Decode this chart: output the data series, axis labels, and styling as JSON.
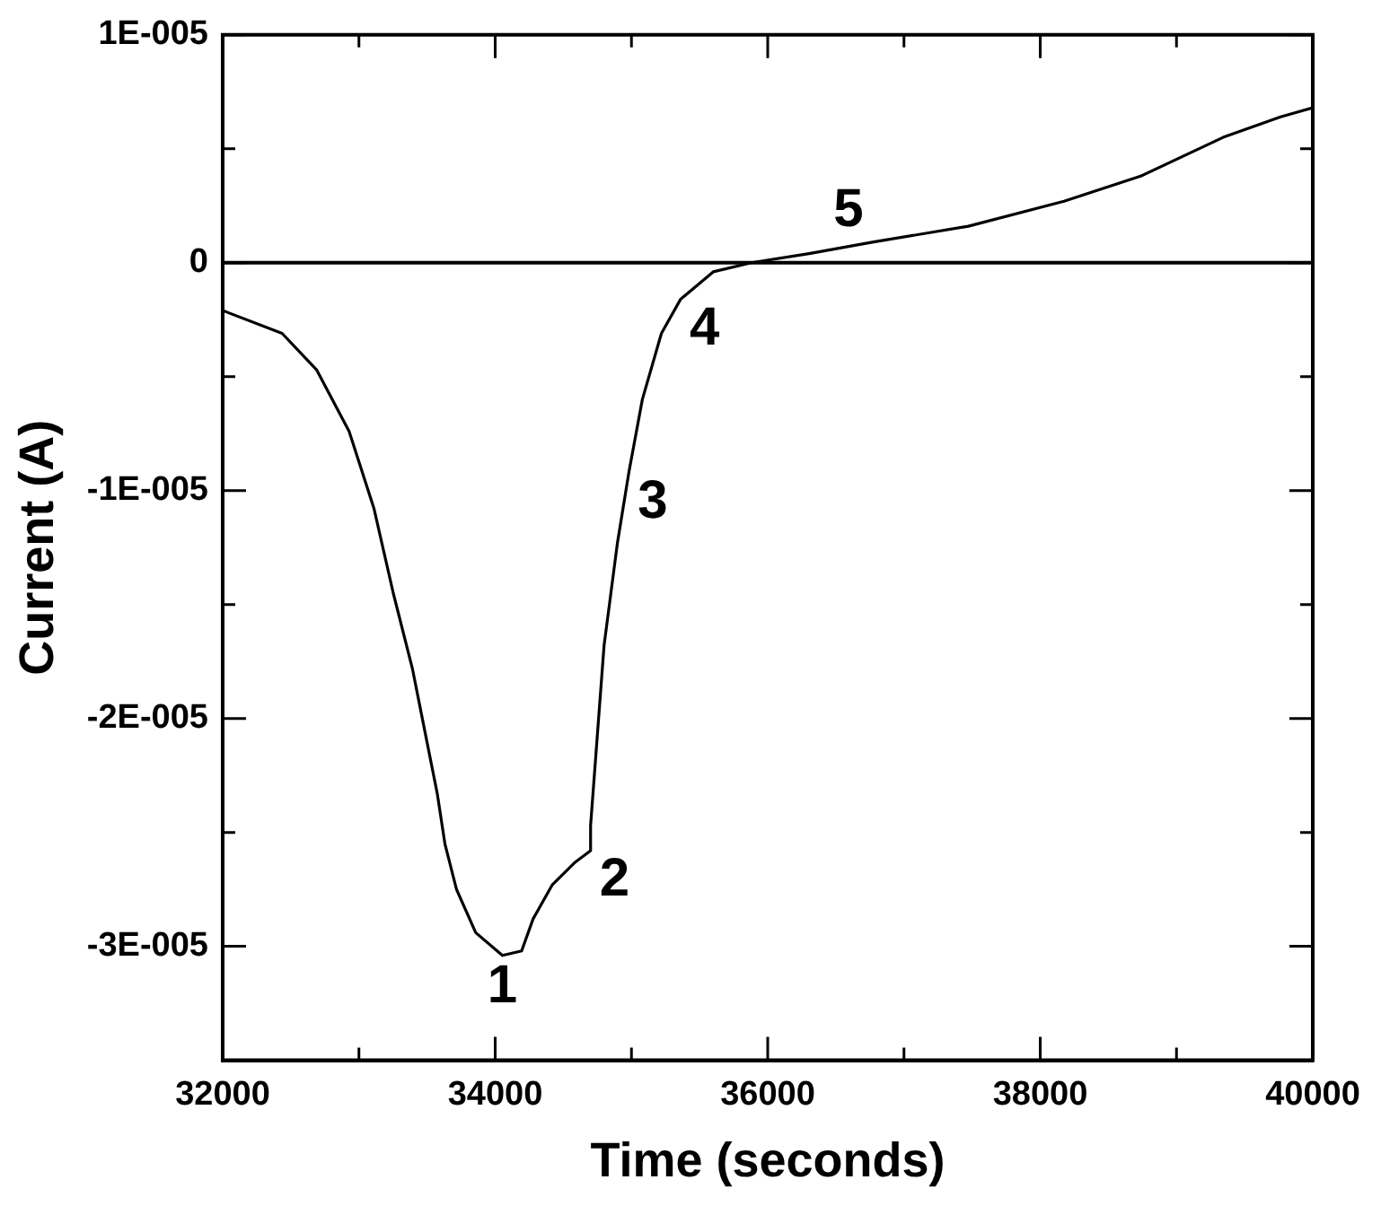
{
  "chart_data": {
    "type": "line",
    "xlabel": "Time (seconds)",
    "ylabel": "Current (A)",
    "x": [
      32000,
      32436,
      32689,
      32928,
      33111,
      33252,
      33392,
      33505,
      33575,
      33631,
      33716,
      33857,
      34053,
      34194,
      34278,
      34419,
      34588,
      34700,
      34700,
      34799,
      34897,
      34981,
      35080,
      35220,
      35361,
      35600,
      35881,
      36304,
      36768,
      37472,
      38175,
      38737,
      39342,
      39764,
      40000
    ],
    "series": [
      {
        "color": "#000000",
        "values": [
          -2.1e-06,
          -3.1e-06,
          -4.7e-06,
          -7.4e-06,
          -1.08e-05,
          -1.45e-05,
          -1.78e-05,
          -2.12e-05,
          -2.33e-05,
          -2.55e-05,
          -2.75e-05,
          -2.94e-05,
          -3.04e-05,
          -3.02e-05,
          -2.88e-05,
          -2.73e-05,
          -2.63e-05,
          -2.58e-05,
          -2.47e-05,
          -1.68e-05,
          -1.23e-05,
          -9.2e-06,
          -6e-06,
          -3.1e-06,
          -1.6e-06,
          -4e-07,
          0,
          4e-07,
          9e-07,
          1.6e-06,
          2.7e-06,
          3.8e-06,
          5.5e-06,
          6.4e-06,
          6.8e-06
        ]
      }
    ],
    "xlim": [
      32000,
      40000
    ],
    "xticks": [
      32000,
      {
        "value": 33000,
        "label": null
      },
      34000,
      {
        "value": 35000,
        "label": null
      },
      36000,
      {
        "value": 37000,
        "label": null
      },
      38000,
      {
        "value": 39000,
        "label": null
      },
      40000
    ],
    "ylim": [
      -3.5e-05,
      1e-05
    ],
    "yticks": [
      {
        "value": -3e-05,
        "label": "-3E-005"
      },
      {
        "value": -2.5e-05,
        "label": null
      },
      {
        "value": -2e-05,
        "label": "-2E-005"
      },
      {
        "value": -1.5e-05,
        "label": null
      },
      {
        "value": -1e-05,
        "label": "-1E-005"
      },
      {
        "value": -5e-06,
        "label": null
      },
      {
        "value": 0,
        "label": "0"
      },
      {
        "value": 5e-06,
        "label": null
      },
      {
        "value": 1e-05,
        "label": "1E-005"
      }
    ],
    "ref_lines": [
      {
        "axis": "y",
        "value": 0,
        "color": "#000000"
      }
    ],
    "annotations": [
      {
        "text": "1",
        "x": 34053,
        "y": -3.04e-05
      },
      {
        "text": "2",
        "x": 34700,
        "y": -2.58e-05
      },
      {
        "text": "3",
        "x": 34981,
        "y": -9.2e-06
      },
      {
        "text": "4",
        "x": 35361,
        "y": -1.6e-06
      },
      {
        "text": "5",
        "x": 36768,
        "y": 9e-07
      }
    ],
    "grid": false,
    "legend": false,
    "marker": "none",
    "line_style": "solid"
  }
}
